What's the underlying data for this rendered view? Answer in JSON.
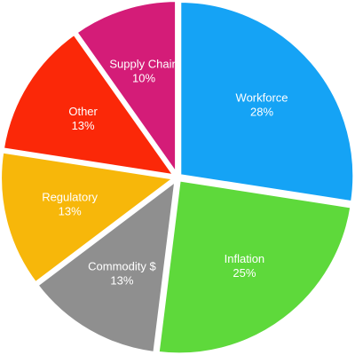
{
  "chart_data": {
    "type": "pie",
    "title": "",
    "start_angle_deg": 0,
    "direction": "clockwise",
    "slices": [
      {
        "label": "Workforce",
        "value": 28,
        "display": "28%",
        "color": "#15A3F5"
      },
      {
        "label": "Inflation",
        "value": 25,
        "display": "25%",
        "color": "#5ED93B"
      },
      {
        "label": "Commodity $",
        "value": 13,
        "display": "13%",
        "color": "#8F8F8F"
      },
      {
        "label": "Regulatory",
        "value": 13,
        "display": "13%",
        "color": "#F7B70A"
      },
      {
        "label": "Other",
        "value": 13,
        "display": "13%",
        "color": "#FB2808"
      },
      {
        "label": "Supply Chain",
        "value": 10,
        "display": "10%",
        "color": "#D41C78"
      }
    ],
    "legend": "none",
    "labels": "inside"
  }
}
